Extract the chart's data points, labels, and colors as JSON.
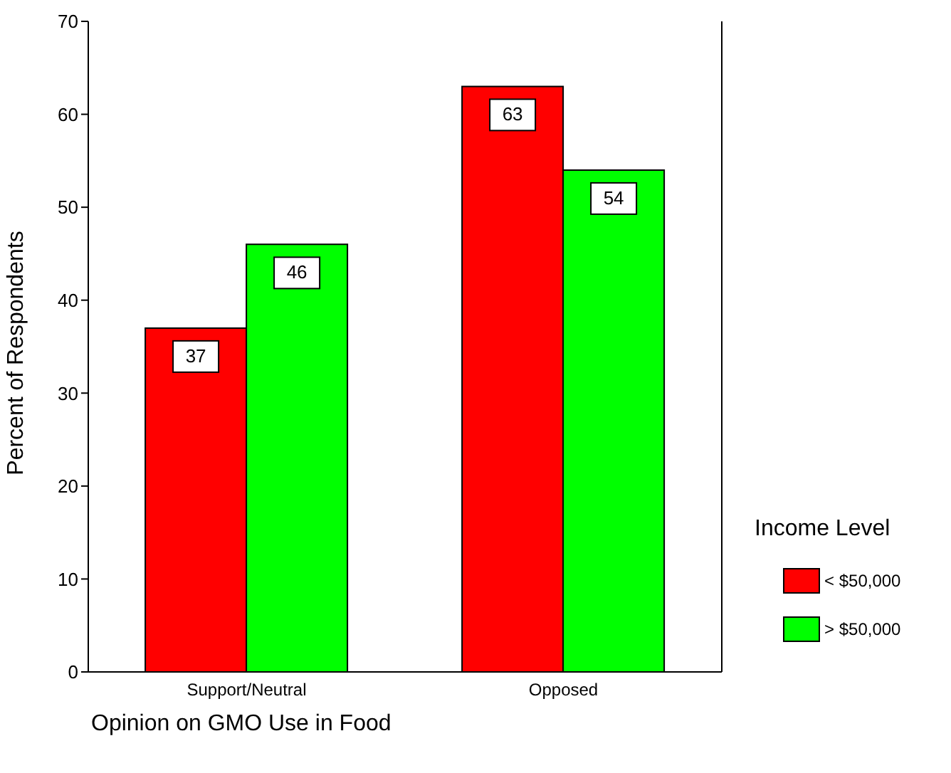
{
  "chart_data": {
    "type": "bar",
    "xlabel": "Opinion on GMO Use in Food",
    "ylabel": "Percent of Respondents",
    "legend_title": "Income Level",
    "categories": [
      "Support/Neutral",
      "Opposed"
    ],
    "series": [
      {
        "name": "< $50,000",
        "color": "#ff0000",
        "values": [
          37,
          63
        ]
      },
      {
        "name": "> $50,000",
        "color": "#00ff00",
        "values": [
          46,
          54
        ]
      }
    ],
    "ylim": [
      0,
      70
    ],
    "yticks": [
      0,
      10,
      20,
      30,
      40,
      50,
      60,
      70
    ],
    "data_labels": true,
    "legend": "right",
    "grid": false
  }
}
